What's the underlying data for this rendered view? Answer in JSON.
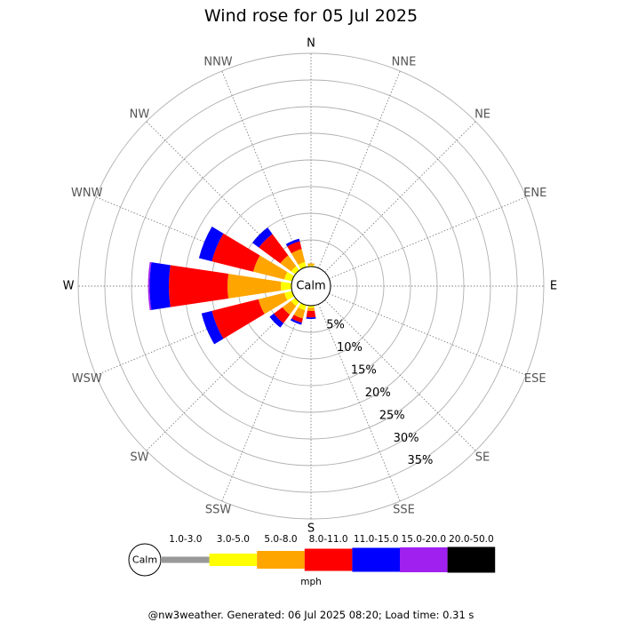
{
  "page": {
    "title": "Wind rose for 05 Jul 2025",
    "footer": "@nw3weather. Generated: 06 Jul 2025 08:20; Load time: 0.31 s"
  },
  "chart_data": {
    "type": "windrose",
    "title": "Wind rose for 05 Jul 2025",
    "center_label": "Calm",
    "directions": [
      "N",
      "NNE",
      "NE",
      "ENE",
      "E",
      "ESE",
      "SE",
      "SSE",
      "S",
      "SSW",
      "SW",
      "WSW",
      "W",
      "WNW",
      "NW",
      "NNW"
    ],
    "radial_ticks": [
      "5%",
      "10%",
      "15%",
      "20%",
      "25%",
      "30%",
      "35%"
    ],
    "radial_max": 40,
    "units_label": "mph",
    "speed_bins": [
      {
        "label": "1.0-3.0",
        "color": "#999999"
      },
      {
        "label": "3.0-5.0",
        "color": "#ffff00"
      },
      {
        "label": "5.0-8.0",
        "color": "#ffa500"
      },
      {
        "label": "8.0-11.0",
        "color": "#ff0000"
      },
      {
        "label": "11.0-15.0",
        "color": "#0000ff"
      },
      {
        "label": "15.0-20.0",
        "color": "#a020f0"
      },
      {
        "label": "20.0-50.0",
        "color": "#000000"
      }
    ],
    "series": [
      {
        "direction": "N",
        "values": [
          0.0,
          0.3,
          0.3,
          0.0,
          0.0,
          0.0,
          0.0
        ]
      },
      {
        "direction": "NNE",
        "values": [
          0.0,
          0.0,
          0.0,
          0.0,
          0.0,
          0.0,
          0.0
        ]
      },
      {
        "direction": "NE",
        "values": [
          0.0,
          0.0,
          0.0,
          0.0,
          0.0,
          0.0,
          0.0
        ]
      },
      {
        "direction": "ENE",
        "values": [
          0.0,
          0.0,
          0.0,
          0.0,
          0.0,
          0.0,
          0.0
        ]
      },
      {
        "direction": "E",
        "values": [
          0.0,
          0.0,
          0.0,
          0.0,
          0.0,
          0.0,
          0.0
        ]
      },
      {
        "direction": "ESE",
        "values": [
          0.0,
          0.0,
          0.0,
          0.0,
          0.0,
          0.0,
          0.0
        ]
      },
      {
        "direction": "SE",
        "values": [
          0.0,
          0.0,
          0.0,
          0.0,
          0.0,
          0.0,
          0.0
        ]
      },
      {
        "direction": "SSE",
        "values": [
          0.0,
          0.0,
          0.0,
          0.0,
          0.0,
          0.0,
          0.0
        ]
      },
      {
        "direction": "S",
        "values": [
          0.0,
          0.4,
          0.6,
          1.2,
          0.3,
          0.0,
          0.0
        ]
      },
      {
        "direction": "SSW",
        "values": [
          0.0,
          1.0,
          1.6,
          0.8,
          0.4,
          0.0,
          0.0
        ]
      },
      {
        "direction": "SW",
        "values": [
          0.0,
          1.0,
          2.0,
          2.0,
          1.0,
          0.0,
          0.0
        ]
      },
      {
        "direction": "WSW",
        "values": [
          0.0,
          1.5,
          5.0,
          9.0,
          2.0,
          0.0,
          0.0
        ]
      },
      {
        "direction": "W",
        "values": [
          0.0,
          2.0,
          10.0,
          11.0,
          3.6,
          0.3,
          0.0
        ]
      },
      {
        "direction": "WNW",
        "values": [
          0.0,
          1.5,
          6.0,
          8.0,
          2.5,
          0.0,
          0.0
        ]
      },
      {
        "direction": "NW",
        "values": [
          0.0,
          1.0,
          2.5,
          5.0,
          1.5,
          0.0,
          0.0
        ]
      },
      {
        "direction": "NNW",
        "values": [
          0.0,
          1.0,
          2.5,
          1.5,
          0.5,
          0.0,
          0.0
        ]
      }
    ]
  }
}
